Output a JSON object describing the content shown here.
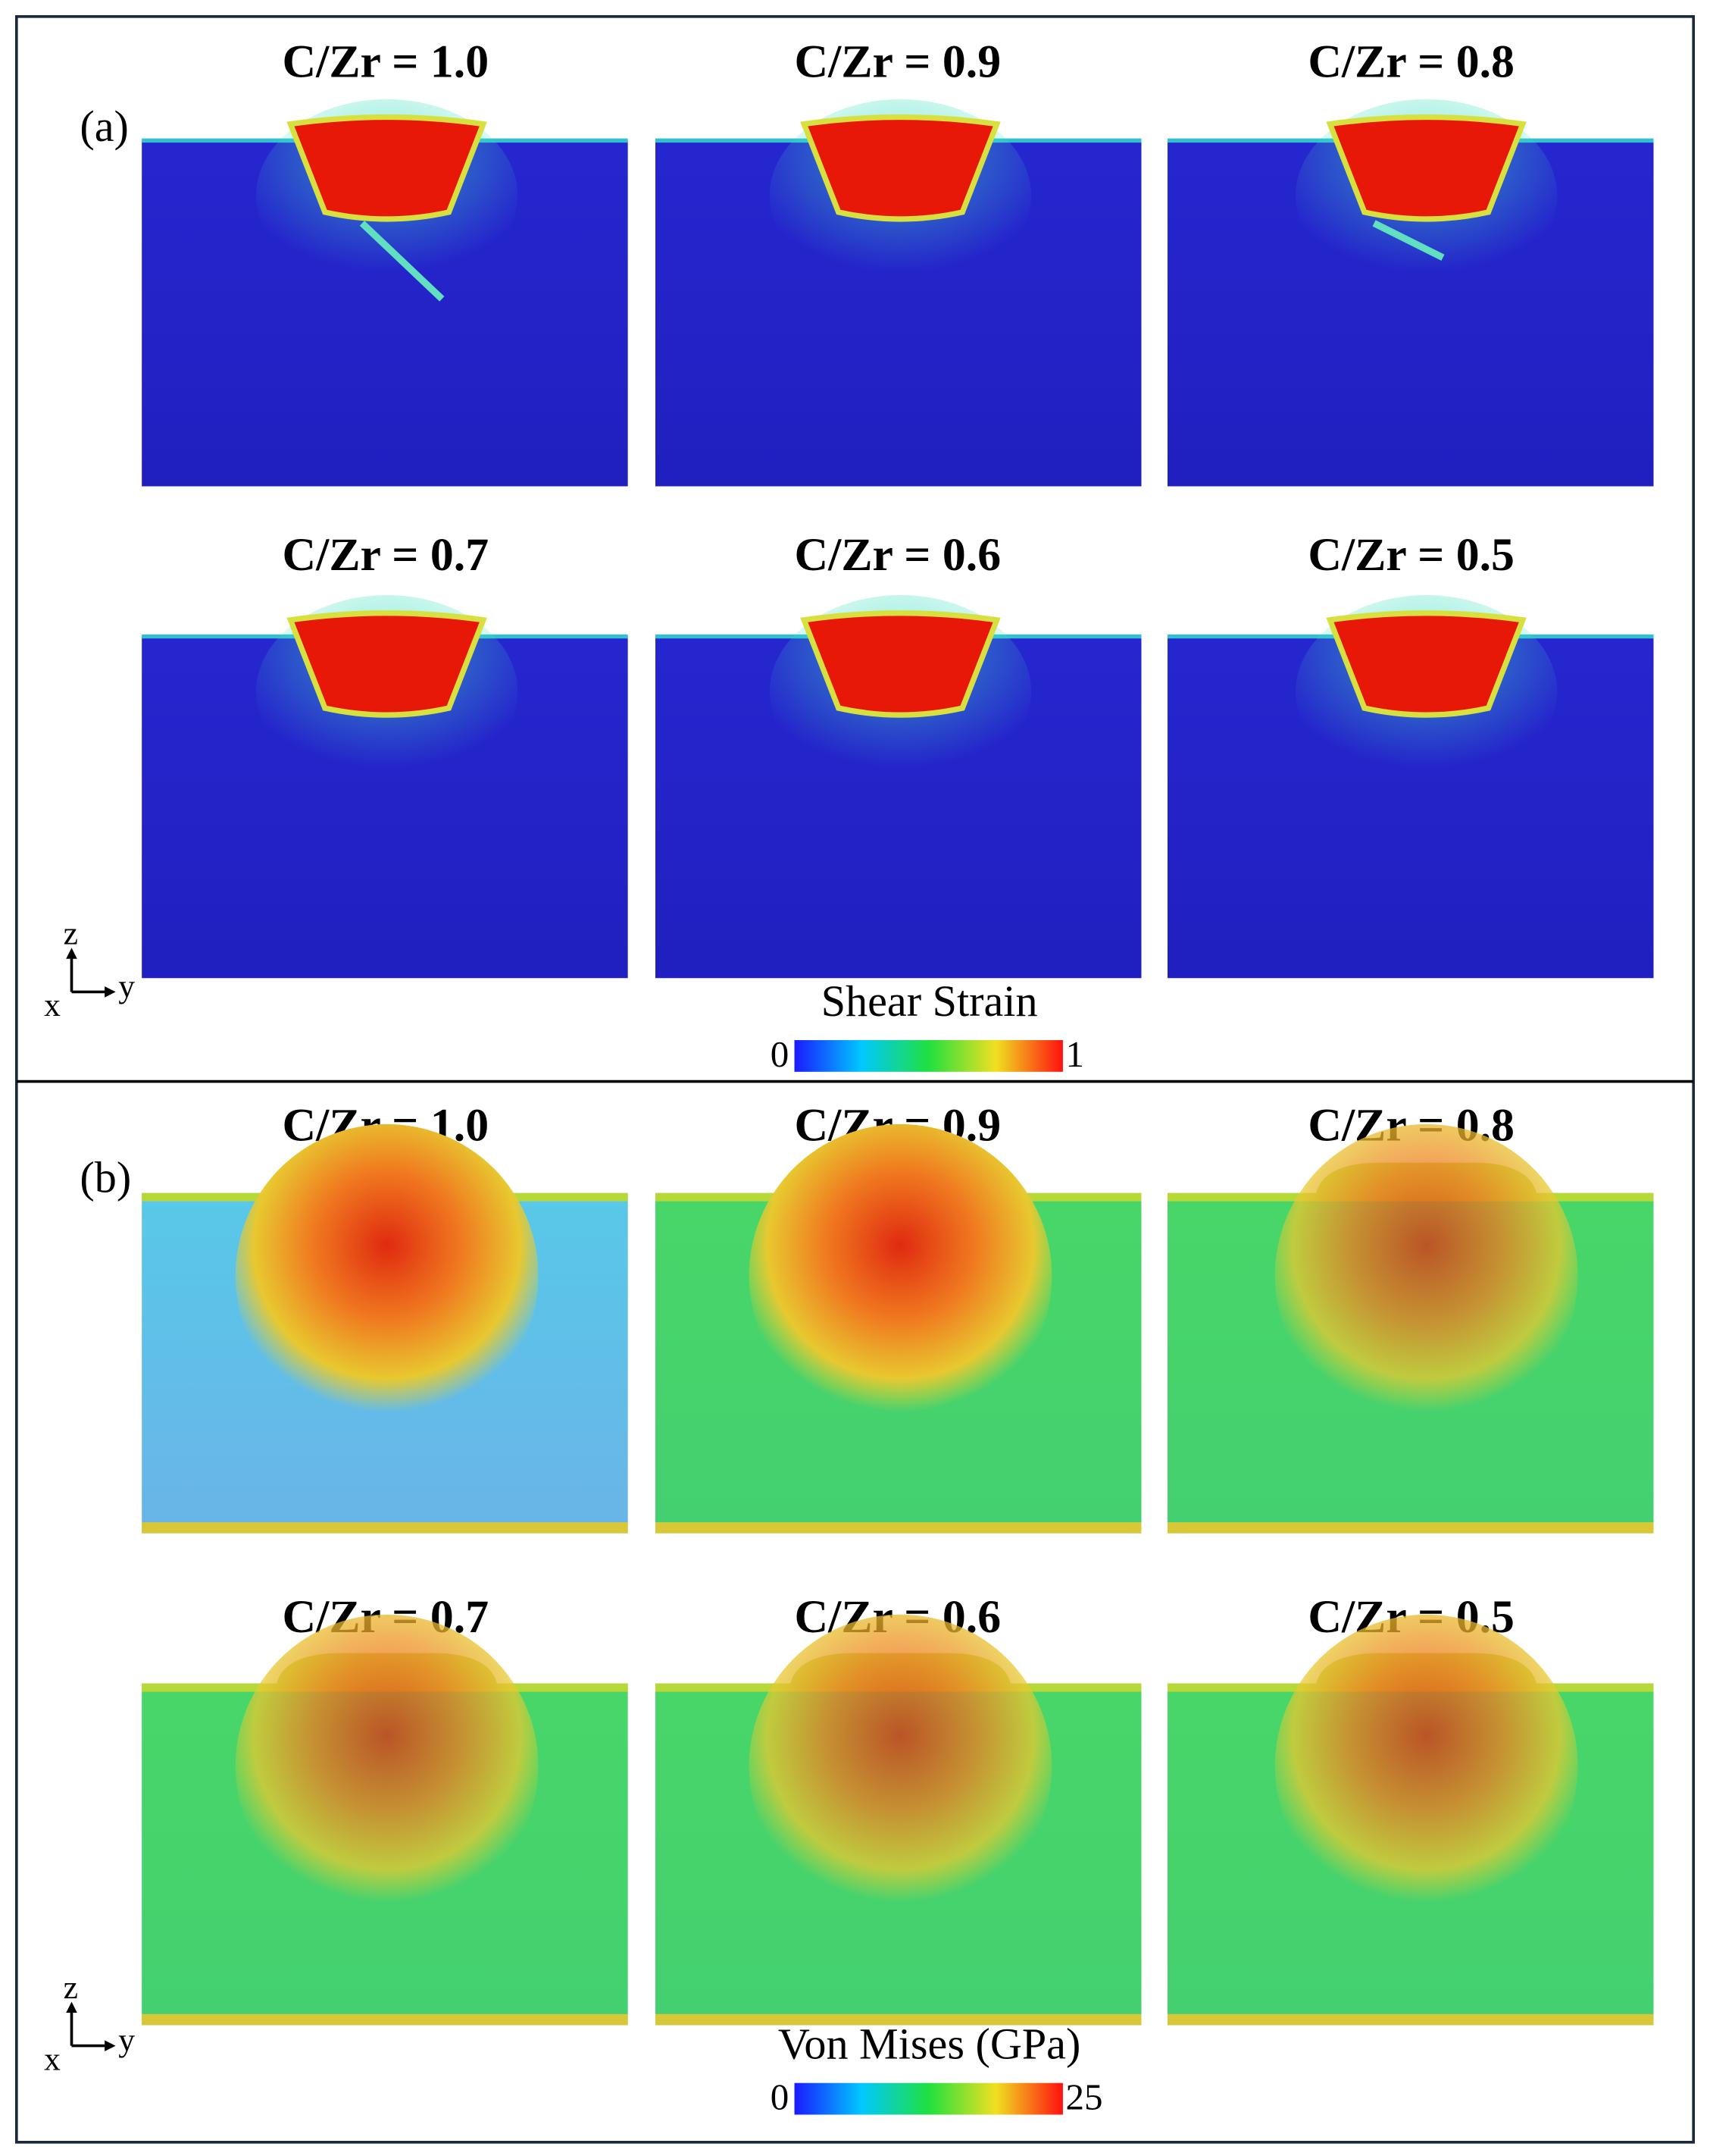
{
  "panels": [
    {
      "label": "(a)",
      "snapshots": [
        "C/Zr = 1.0",
        "C/Zr = 0.9",
        "C/Zr = 0.8",
        "C/Zr = 0.7",
        "C/Zr = 0.6",
        "C/Zr = 0.5"
      ],
      "colorbar": {
        "title": "Shear Strain",
        "min": 0,
        "max": 1
      },
      "axes": {
        "z": "z",
        "x": "x",
        "y": "y"
      }
    },
    {
      "label": "(b)",
      "snapshots": [
        "C/Zr = 1.0",
        "C/Zr = 0.9",
        "C/Zr = 0.8",
        "C/Zr = 0.7",
        "C/Zr = 0.6",
        "C/Zr = 0.5"
      ],
      "colorbar": {
        "title": "Von Mises (GPa)",
        "min": 0,
        "max": 25
      },
      "axes": {
        "z": "z",
        "x": "x",
        "y": "y"
      }
    }
  ]
}
